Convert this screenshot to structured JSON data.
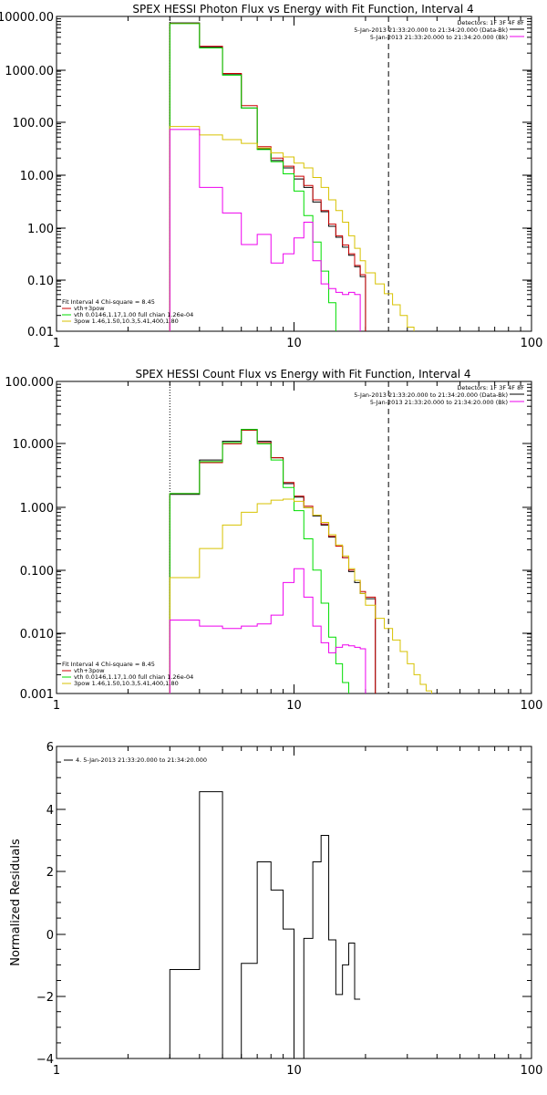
{
  "colors": {
    "black": "#000000",
    "red": "#cc0000",
    "green": "#00dd00",
    "yellow": "#d7c200",
    "magenta": "#ee00ee"
  },
  "chart_data": [
    {
      "type": "line",
      "title": "SPEX HESSI Photon Flux vs Energy with Fit Function, Interval 4",
      "xscale": "log",
      "yscale": "log",
      "xlim": [
        1,
        100
      ],
      "ylim": [
        0.01,
        10000
      ],
      "xticks": [
        "1",
        "10",
        "100"
      ],
      "yticks": [
        "10000.00",
        "1000.00",
        "100.00",
        "10.00",
        "1.00",
        "0.10",
        "0.01"
      ],
      "vlines": [
        {
          "x": 3,
          "style": "dotted"
        },
        {
          "x": 25,
          "style": "dashed"
        }
      ],
      "info_lines": [
        "Detectors: 1F 3F 4F 8F",
        "5-Jan-2013 21:33:20.000 to 21:34:20.000 (Data-Bk)",
        "5-Jan-2013 21:33:20.000 to 21:34:20.000 (Bk)"
      ],
      "legend_lines": [
        "Fit Interval 4   Chi-square = 8.45",
        "vth+3pow",
        "vth 0.0146,1.17,1.00  full chian 1.26e-04",
        "3pow 1.46,1.50,10.3,5.41,400,1.80"
      ],
      "edges": [
        3,
        4,
        5,
        6,
        7,
        8,
        9,
        10,
        11,
        12,
        13,
        14,
        15,
        16,
        17,
        18,
        19,
        20,
        22,
        24,
        26,
        28,
        30,
        32,
        34,
        36,
        38,
        40,
        42
      ],
      "series": [
        {
          "name": "(Data-Bk)",
          "color": "black",
          "values": [
            7500,
            2600,
            800,
            180,
            30,
            18,
            13,
            8,
            5.5,
            2.9,
            1.9,
            1.0,
            0.62,
            0.4,
            0.28,
            0.17,
            0.11
          ]
        },
        {
          "name": "vth+3pow",
          "color": "red",
          "values": [
            7400,
            2700,
            820,
            200,
            33,
            20,
            14,
            9,
            6,
            3.2,
            2.0,
            1.1,
            0.66,
            0.44,
            0.3,
            0.18,
            0.12
          ]
        },
        {
          "name": "vth",
          "color": "green",
          "values": [
            7300,
            2500,
            760,
            180,
            29,
            17,
            10,
            4.7,
            1.6,
            0.5,
            0.14,
            0.035,
            0.008
          ]
        },
        {
          "name": "3pow",
          "color": "yellow",
          "values": [
            80,
            55,
            45,
            38,
            31,
            25,
            21,
            16,
            13,
            8.5,
            5.5,
            3.2,
            2.0,
            1.2,
            0.66,
            0.38,
            0.22,
            0.13,
            0.08,
            0.052,
            0.032,
            0.02,
            0.012,
            0.008
          ]
        },
        {
          "name": "(Bk)",
          "color": "magenta",
          "values": [
            70,
            5.5,
            1.8,
            0.45,
            0.7,
            0.2,
            0.3,
            0.6,
            1.2,
            0.22,
            0.08,
            0.065,
            0.055,
            0.05,
            0.055,
            0.05,
            0.0
          ]
        }
      ]
    },
    {
      "type": "line",
      "title": "SPEX HESSI Count Flux vs Energy with Fit Function, Interval 4",
      "xscale": "log",
      "yscale": "log",
      "xlim": [
        1,
        100
      ],
      "ylim": [
        0.001,
        100
      ],
      "xticks": [
        "1",
        "10",
        "100"
      ],
      "yticks": [
        "100.000",
        "10.000",
        "1.000",
        "0.100",
        "0.010",
        "0.001"
      ],
      "vlines": [
        {
          "x": 3,
          "style": "dotted"
        },
        {
          "x": 25,
          "style": "dashed"
        }
      ],
      "info_lines": [
        "Detectors: 1F 3F 4F 8F",
        "5-Jan-2013 21:33:20.000 to 21:34:20.000 (Data-Bk)",
        "5-Jan-2013 21:33:20.000 to 21:34:20.000 (Bk)"
      ],
      "legend_lines": [
        "Fit Interval 4   Chi-square = 8.45",
        "vth+3pow",
        "vth 0.0146,1.17,1.00  full chian 1.26e-04",
        "3pow 1.46,1.50,10.3,5.41,400,1.80"
      ],
      "edges": [
        3,
        4,
        5,
        6,
        7,
        8,
        9,
        10,
        11,
        12,
        13,
        14,
        15,
        16,
        17,
        18,
        19,
        20,
        22,
        24,
        26,
        28,
        30,
        32,
        34,
        36,
        38,
        40,
        42
      ],
      "series": [
        {
          "name": "(Data-Bk)",
          "color": "black",
          "values": [
            1.55,
            5.5,
            11,
            17,
            11,
            6,
            2.3,
            1.4,
            0.95,
            0.7,
            0.5,
            0.32,
            0.23,
            0.15,
            0.09,
            0.06,
            0.04,
            0.033
          ]
        },
        {
          "name": "vth+3pow",
          "color": "red",
          "values": [
            1.6,
            5.0,
            10,
            16.5,
            10.5,
            6,
            2.4,
            1.45,
            1.0,
            0.72,
            0.52,
            0.33,
            0.23,
            0.15,
            0.095,
            0.065,
            0.043,
            0.035
          ]
        },
        {
          "name": "vth",
          "color": "green",
          "values": [
            1.6,
            5.2,
            10.5,
            17,
            10,
            5.5,
            2.0,
            0.85,
            0.3,
            0.095,
            0.028,
            0.008,
            0.003,
            0.0015
          ]
        },
        {
          "name": "3pow",
          "color": "yellow",
          "values": [
            0.072,
            0.21,
            0.5,
            0.8,
            1.1,
            1.25,
            1.3,
            1.2,
            0.95,
            0.72,
            0.55,
            0.35,
            0.24,
            0.16,
            0.1,
            0.065,
            0.04,
            0.026,
            0.016,
            0.011,
            0.0072,
            0.0047,
            0.003,
            0.002,
            0.0014,
            0.0011
          ]
        },
        {
          "name": "(Bk)",
          "color": "magenta",
          "values": [
            0.015,
            0.012,
            0.011,
            0.012,
            0.013,
            0.018,
            0.06,
            0.1,
            0.035,
            0.012,
            0.0065,
            0.0045,
            0.0055,
            0.006,
            0.0058,
            0.0055,
            0.0052
          ]
        }
      ]
    },
    {
      "type": "line",
      "title": "",
      "ylabel": "Normalized Residuals",
      "xscale": "log",
      "yscale": "linear",
      "xlim": [
        1,
        100
      ],
      "ylim": [
        -4,
        6
      ],
      "xticks": [
        "1",
        "10",
        "100"
      ],
      "yticks": [
        "6",
        "4",
        "2",
        "0",
        "−2",
        "−4"
      ],
      "legend_lines": [
        "4.  5-Jan-2013 21:33:20.000 to 21:34:20.000"
      ],
      "edges": [
        3,
        4,
        5,
        6,
        7,
        8,
        9,
        10,
        11,
        12,
        13,
        14,
        15,
        16,
        17,
        18,
        19,
        20,
        22,
        24,
        26
      ],
      "series": [
        {
          "name": "4.",
          "color": "black",
          "values": [
            -1.15,
            4.55,
            -4.1,
            -0.95,
            2.3,
            1.4,
            0.15,
            -4.0,
            -0.15,
            2.3,
            3.15,
            -0.2,
            -1.95,
            -1.0,
            -0.3,
            -2.1
          ]
        }
      ]
    }
  ]
}
